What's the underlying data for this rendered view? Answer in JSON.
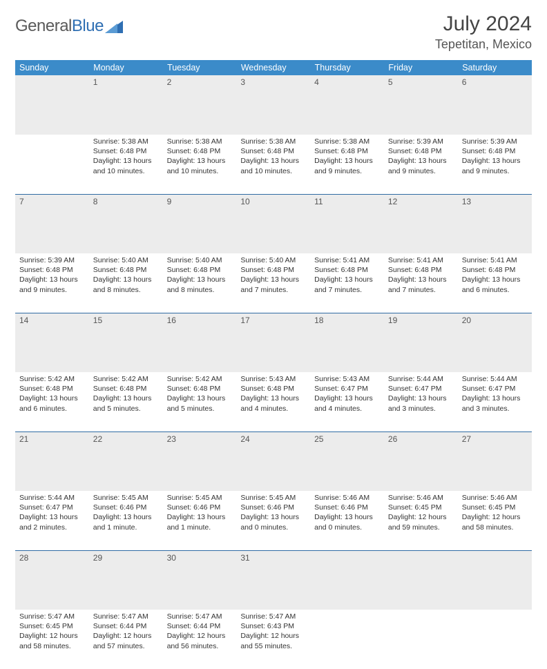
{
  "brand": {
    "name_a": "General",
    "name_b": "Blue"
  },
  "title": "July 2024",
  "location": "Tepetitan, Mexico",
  "colors": {
    "header_bg": "#3b8bc9",
    "header_text": "#ffffff",
    "daynum_bg": "#ececec",
    "week_sep": "#2e6aa3",
    "logo_accent": "#2f6fb3",
    "text": "#333333"
  },
  "day_headers": [
    "Sunday",
    "Monday",
    "Tuesday",
    "Wednesday",
    "Thursday",
    "Friday",
    "Saturday"
  ],
  "weeks": [
    [
      null,
      {
        "n": "1",
        "sr": "5:38 AM",
        "ss": "6:48 PM",
        "dl": "13 hours and 10 minutes."
      },
      {
        "n": "2",
        "sr": "5:38 AM",
        "ss": "6:48 PM",
        "dl": "13 hours and 10 minutes."
      },
      {
        "n": "3",
        "sr": "5:38 AM",
        "ss": "6:48 PM",
        "dl": "13 hours and 10 minutes."
      },
      {
        "n": "4",
        "sr": "5:38 AM",
        "ss": "6:48 PM",
        "dl": "13 hours and 9 minutes."
      },
      {
        "n": "5",
        "sr": "5:39 AM",
        "ss": "6:48 PM",
        "dl": "13 hours and 9 minutes."
      },
      {
        "n": "6",
        "sr": "5:39 AM",
        "ss": "6:48 PM",
        "dl": "13 hours and 9 minutes."
      }
    ],
    [
      {
        "n": "7",
        "sr": "5:39 AM",
        "ss": "6:48 PM",
        "dl": "13 hours and 9 minutes."
      },
      {
        "n": "8",
        "sr": "5:40 AM",
        "ss": "6:48 PM",
        "dl": "13 hours and 8 minutes."
      },
      {
        "n": "9",
        "sr": "5:40 AM",
        "ss": "6:48 PM",
        "dl": "13 hours and 8 minutes."
      },
      {
        "n": "10",
        "sr": "5:40 AM",
        "ss": "6:48 PM",
        "dl": "13 hours and 7 minutes."
      },
      {
        "n": "11",
        "sr": "5:41 AM",
        "ss": "6:48 PM",
        "dl": "13 hours and 7 minutes."
      },
      {
        "n": "12",
        "sr": "5:41 AM",
        "ss": "6:48 PM",
        "dl": "13 hours and 7 minutes."
      },
      {
        "n": "13",
        "sr": "5:41 AM",
        "ss": "6:48 PM",
        "dl": "13 hours and 6 minutes."
      }
    ],
    [
      {
        "n": "14",
        "sr": "5:42 AM",
        "ss": "6:48 PM",
        "dl": "13 hours and 6 minutes."
      },
      {
        "n": "15",
        "sr": "5:42 AM",
        "ss": "6:48 PM",
        "dl": "13 hours and 5 minutes."
      },
      {
        "n": "16",
        "sr": "5:42 AM",
        "ss": "6:48 PM",
        "dl": "13 hours and 5 minutes."
      },
      {
        "n": "17",
        "sr": "5:43 AM",
        "ss": "6:48 PM",
        "dl": "13 hours and 4 minutes."
      },
      {
        "n": "18",
        "sr": "5:43 AM",
        "ss": "6:47 PM",
        "dl": "13 hours and 4 minutes."
      },
      {
        "n": "19",
        "sr": "5:44 AM",
        "ss": "6:47 PM",
        "dl": "13 hours and 3 minutes."
      },
      {
        "n": "20",
        "sr": "5:44 AM",
        "ss": "6:47 PM",
        "dl": "13 hours and 3 minutes."
      }
    ],
    [
      {
        "n": "21",
        "sr": "5:44 AM",
        "ss": "6:47 PM",
        "dl": "13 hours and 2 minutes."
      },
      {
        "n": "22",
        "sr": "5:45 AM",
        "ss": "6:46 PM",
        "dl": "13 hours and 1 minute."
      },
      {
        "n": "23",
        "sr": "5:45 AM",
        "ss": "6:46 PM",
        "dl": "13 hours and 1 minute."
      },
      {
        "n": "24",
        "sr": "5:45 AM",
        "ss": "6:46 PM",
        "dl": "13 hours and 0 minutes."
      },
      {
        "n": "25",
        "sr": "5:46 AM",
        "ss": "6:46 PM",
        "dl": "13 hours and 0 minutes."
      },
      {
        "n": "26",
        "sr": "5:46 AM",
        "ss": "6:45 PM",
        "dl": "12 hours and 59 minutes."
      },
      {
        "n": "27",
        "sr": "5:46 AM",
        "ss": "6:45 PM",
        "dl": "12 hours and 58 minutes."
      }
    ],
    [
      {
        "n": "28",
        "sr": "5:47 AM",
        "ss": "6:45 PM",
        "dl": "12 hours and 58 minutes."
      },
      {
        "n": "29",
        "sr": "5:47 AM",
        "ss": "6:44 PM",
        "dl": "12 hours and 57 minutes."
      },
      {
        "n": "30",
        "sr": "5:47 AM",
        "ss": "6:44 PM",
        "dl": "12 hours and 56 minutes."
      },
      {
        "n": "31",
        "sr": "5:47 AM",
        "ss": "6:43 PM",
        "dl": "12 hours and 55 minutes."
      },
      null,
      null,
      null
    ]
  ],
  "labels": {
    "sunrise": "Sunrise:",
    "sunset": "Sunset:",
    "daylight": "Daylight:"
  }
}
